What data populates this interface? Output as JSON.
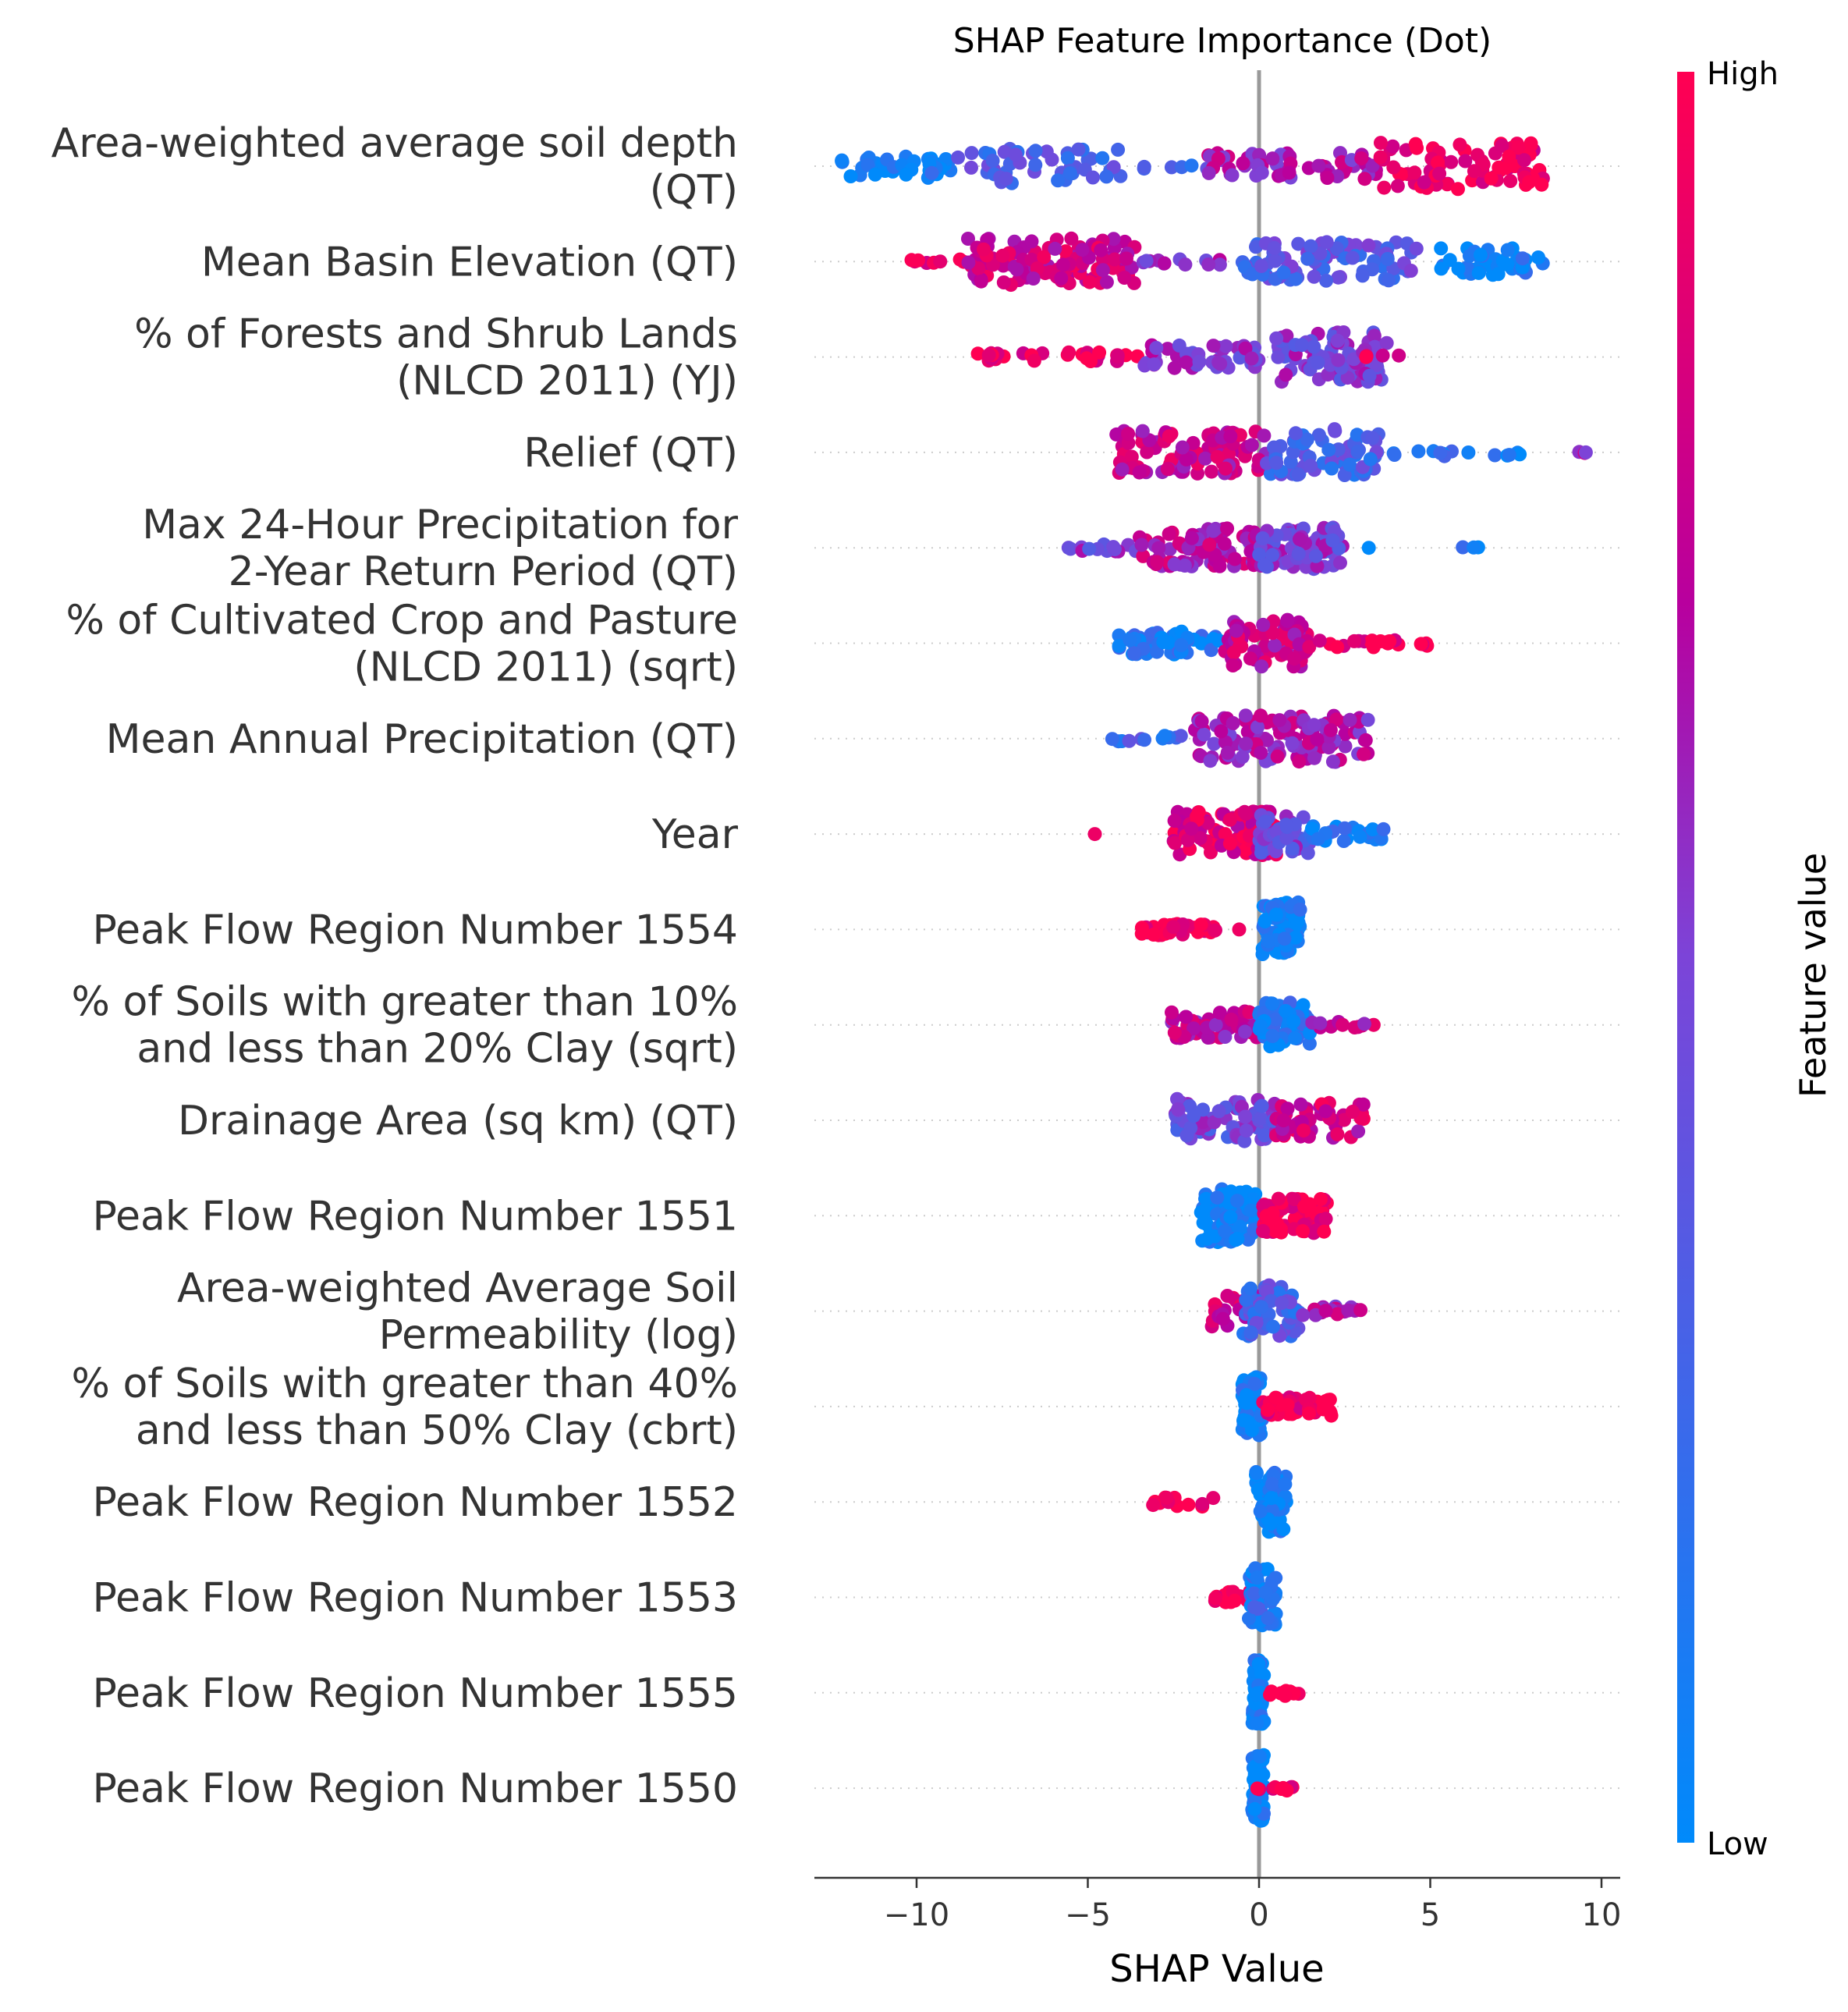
{
  "chart_data": {
    "type": "scatter",
    "subtype": "shap-beeswarm",
    "title": "SHAP Feature Importance (Dot)",
    "xlabel": "SHAP Value",
    "xlim": [
      -13,
      10.6
    ],
    "xticks": [
      -10,
      -5,
      0,
      5,
      10
    ],
    "xtick_labels": [
      "−10",
      "−5",
      "0",
      "5",
      "10"
    ],
    "colorbar": {
      "label": "Feature value",
      "high": "High",
      "low": "Low",
      "low_color": "#008afb",
      "high_color": "#ff0052"
    },
    "features": [
      {
        "label": [
          "Area-weighted average soil depth",
          "(QT)"
        ],
        "clusters": [
          {
            "range": [
              -12.2,
              -9.0
            ],
            "n": 42,
            "color": 0.05,
            "spread": 0.3
          },
          {
            "range": [
              -9.0,
              -4.0
            ],
            "n": 50,
            "color": 0.3,
            "spread": 0.45
          },
          {
            "range": [
              -3.6,
              -1.5
            ],
            "n": 6,
            "color": 0.3,
            "spread": 0.1
          },
          {
            "range": [
              -1.5,
              3.5
            ],
            "n": 60,
            "color": 0.65,
            "spread": 0.35
          },
          {
            "range": [
              3.5,
              8.3
            ],
            "n": 80,
            "color": 0.92,
            "spread": 0.6
          }
        ]
      },
      {
        "label": [
          "Mean Basin Elevation (QT)"
        ],
        "clusters": [
          {
            "range": [
              -10.5,
              -8.5
            ],
            "n": 8,
            "color": 0.95,
            "spread": 0.08
          },
          {
            "range": [
              -8.5,
              -3.5
            ],
            "n": 110,
            "color": 0.8,
            "spread": 0.6
          },
          {
            "range": [
              -3.5,
              -1.0
            ],
            "n": 12,
            "color": 0.55,
            "spread": 0.1
          },
          {
            "range": [
              -0.5,
              4.6
            ],
            "n": 90,
            "color": 0.35,
            "spread": 0.5
          },
          {
            "range": [
              5.3,
              8.3
            ],
            "n": 45,
            "color": 0.05,
            "spread": 0.35
          }
        ]
      },
      {
        "label": [
          "% of Forests and Shrub Lands",
          "(NLCD 2011) (YJ)"
        ],
        "clusters": [
          {
            "range": [
              -8.5,
              -3.5
            ],
            "n": 30,
            "color": 0.95,
            "spread": 0.12
          },
          {
            "range": [
              -3.5,
              0.0
            ],
            "n": 45,
            "color": 0.55,
            "spread": 0.3
          },
          {
            "range": [
              0.5,
              3.8
            ],
            "n": 90,
            "color": 0.5,
            "spread": 0.65
          },
          {
            "range": [
              3.0,
              4.2
            ],
            "n": 4,
            "color": 0.9,
            "spread": 0.05
          }
        ]
      },
      {
        "label": [
          "Relief (QT)"
        ],
        "clusters": [
          {
            "range": [
              -4.2,
              0.2
            ],
            "n": 95,
            "color": 0.75,
            "spread": 0.55
          },
          {
            "range": [
              0.2,
              3.5
            ],
            "n": 75,
            "color": 0.3,
            "spread": 0.6
          },
          {
            "range": [
              3.5,
              7.7
            ],
            "n": 14,
            "color": 0.15,
            "spread": 0.1
          },
          {
            "range": [
              9.2,
              9.6
            ],
            "n": 3,
            "color": 0.65,
            "spread": 0.02
          }
        ]
      },
      {
        "label": [
          "Max 24-Hour Precipitation for",
          "2-Year Return Period (QT)"
        ],
        "clusters": [
          {
            "range": [
              -5.8,
              -3.5
            ],
            "n": 14,
            "color": 0.5,
            "spread": 0.1
          },
          {
            "range": [
              -3.5,
              0.0
            ],
            "n": 80,
            "color": 0.7,
            "spread": 0.5
          },
          {
            "range": [
              0.0,
              2.5
            ],
            "n": 70,
            "color": 0.5,
            "spread": 0.55
          },
          {
            "range": [
              3.2,
              3.5
            ],
            "n": 1,
            "color": 0.1,
            "spread": 0.0
          },
          {
            "range": [
              5.9,
              6.4
            ],
            "n": 3,
            "color": 0.1,
            "spread": 0.02
          }
        ]
      },
      {
        "label": [
          "% of Cultivated Crop and Pasture",
          "(NLCD 2011) (sqrt)"
        ],
        "clusters": [
          {
            "range": [
              -4.2,
              -1.0
            ],
            "n": 55,
            "color": 0.1,
            "spread": 0.3
          },
          {
            "range": [
              -1.0,
              1.5
            ],
            "n": 70,
            "color": 0.75,
            "spread": 0.6
          },
          {
            "range": [
              1.5,
              5.0
            ],
            "n": 20,
            "color": 0.95,
            "spread": 0.1
          }
        ]
      },
      {
        "label": [
          "Mean Annual Precipitation (QT)"
        ],
        "clusters": [
          {
            "range": [
              -4.4,
              -2.0
            ],
            "n": 12,
            "color": 0.25,
            "spread": 0.08
          },
          {
            "range": [
              -2.0,
              3.2
            ],
            "n": 120,
            "color": 0.65,
            "spread": 0.6
          }
        ]
      },
      {
        "label": [
          "Year"
        ],
        "clusters": [
          {
            "range": [
              -4.8,
              -4.6
            ],
            "n": 1,
            "color": 0.95,
            "spread": 0.0
          },
          {
            "range": [
              -2.5,
              0.5
            ],
            "n": 90,
            "color": 0.85,
            "spread": 0.6
          },
          {
            "range": [
              0.0,
              1.5
            ],
            "n": 40,
            "color": 0.45,
            "spread": 0.5
          },
          {
            "range": [
              1.5,
              3.9
            ],
            "n": 25,
            "color": 0.1,
            "spread": 0.2
          }
        ]
      },
      {
        "label": [
          "Peak Flow Region Number 1554"
        ],
        "clusters": [
          {
            "range": [
              -3.5,
              -1.2
            ],
            "n": 35,
            "color": 0.97,
            "spread": 0.15
          },
          {
            "range": [
              -0.6,
              -0.5
            ],
            "n": 1,
            "color": 0.97,
            "spread": 0.0
          },
          {
            "range": [
              0.1,
              1.2
            ],
            "n": 90,
            "color": 0.03,
            "spread": 0.7
          }
        ]
      },
      {
        "label": [
          "% of Soils with greater than 10%",
          "and less than 20% Clay (sqrt)"
        ],
        "clusters": [
          {
            "range": [
              -2.6,
              0.0
            ],
            "n": 55,
            "color": 0.7,
            "spread": 0.35
          },
          {
            "range": [
              0.0,
              1.5
            ],
            "n": 60,
            "color": 0.1,
            "spread": 0.6
          },
          {
            "range": [
              1.5,
              3.4
            ],
            "n": 12,
            "color": 0.75,
            "spread": 0.08
          }
        ]
      },
      {
        "label": [
          "Drainage Area (sq km) (QT)"
        ],
        "clusters": [
          {
            "range": [
              -2.5,
              0.5
            ],
            "n": 75,
            "color": 0.45,
            "spread": 0.55
          },
          {
            "range": [
              0.5,
              3.1
            ],
            "n": 55,
            "color": 0.8,
            "spread": 0.45
          }
        ]
      },
      {
        "label": [
          "Peak Flow Region Number 1551"
        ],
        "clusters": [
          {
            "range": [
              -1.7,
              -0.1
            ],
            "n": 95,
            "color": 0.03,
            "spread": 0.7
          },
          {
            "range": [
              0.1,
              2.0
            ],
            "n": 70,
            "color": 0.97,
            "spread": 0.45
          }
        ]
      },
      {
        "label": [
          "Area-weighted Average Soil",
          "Permeability (log)"
        ],
        "clusters": [
          {
            "range": [
              -1.6,
              0.0
            ],
            "n": 35,
            "color": 0.8,
            "spread": 0.4
          },
          {
            "range": [
              -0.5,
              1.2
            ],
            "n": 55,
            "color": 0.3,
            "spread": 0.7
          },
          {
            "range": [
              1.2,
              3.0
            ],
            "n": 18,
            "color": 0.65,
            "spread": 0.12
          }
        ]
      },
      {
        "label": [
          "% of Soils with greater than 40%",
          "and less than 50% Clay (cbrt)"
        ],
        "clusters": [
          {
            "range": [
              -0.5,
              0.1
            ],
            "n": 85,
            "color": 0.05,
            "spread": 0.75
          },
          {
            "range": [
              0.1,
              2.2
            ],
            "n": 40,
            "color": 0.95,
            "spread": 0.25
          }
        ]
      },
      {
        "label": [
          "Peak Flow Region Number 1552"
        ],
        "clusters": [
          {
            "range": [
              -3.1,
              -1.0
            ],
            "n": 14,
            "color": 0.97,
            "spread": 0.12
          },
          {
            "range": [
              -0.1,
              0.8
            ],
            "n": 70,
            "color": 0.03,
            "spread": 0.8
          }
        ]
      },
      {
        "label": [
          "Peak Flow Region Number 1553"
        ],
        "clusters": [
          {
            "range": [
              -1.3,
              -0.2
            ],
            "n": 18,
            "color": 0.95,
            "spread": 0.15
          },
          {
            "range": [
              -0.3,
              0.5
            ],
            "n": 70,
            "color": 0.15,
            "spread": 0.75
          }
        ]
      },
      {
        "label": [
          "Peak Flow Region Number 1555"
        ],
        "clusters": [
          {
            "range": [
              -0.2,
              0.15
            ],
            "n": 70,
            "color": 0.03,
            "spread": 0.85
          },
          {
            "range": [
              0.2,
              1.2
            ],
            "n": 8,
            "color": 0.97,
            "spread": 0.08
          }
        ]
      },
      {
        "label": [
          "Peak Flow Region Number 1550"
        ],
        "clusters": [
          {
            "range": [
              -0.2,
              0.15
            ],
            "n": 70,
            "color": 0.03,
            "spread": 0.85
          },
          {
            "range": [
              -0.4,
              1.0
            ],
            "n": 10,
            "color": 0.97,
            "spread": 0.06
          }
        ]
      }
    ]
  }
}
